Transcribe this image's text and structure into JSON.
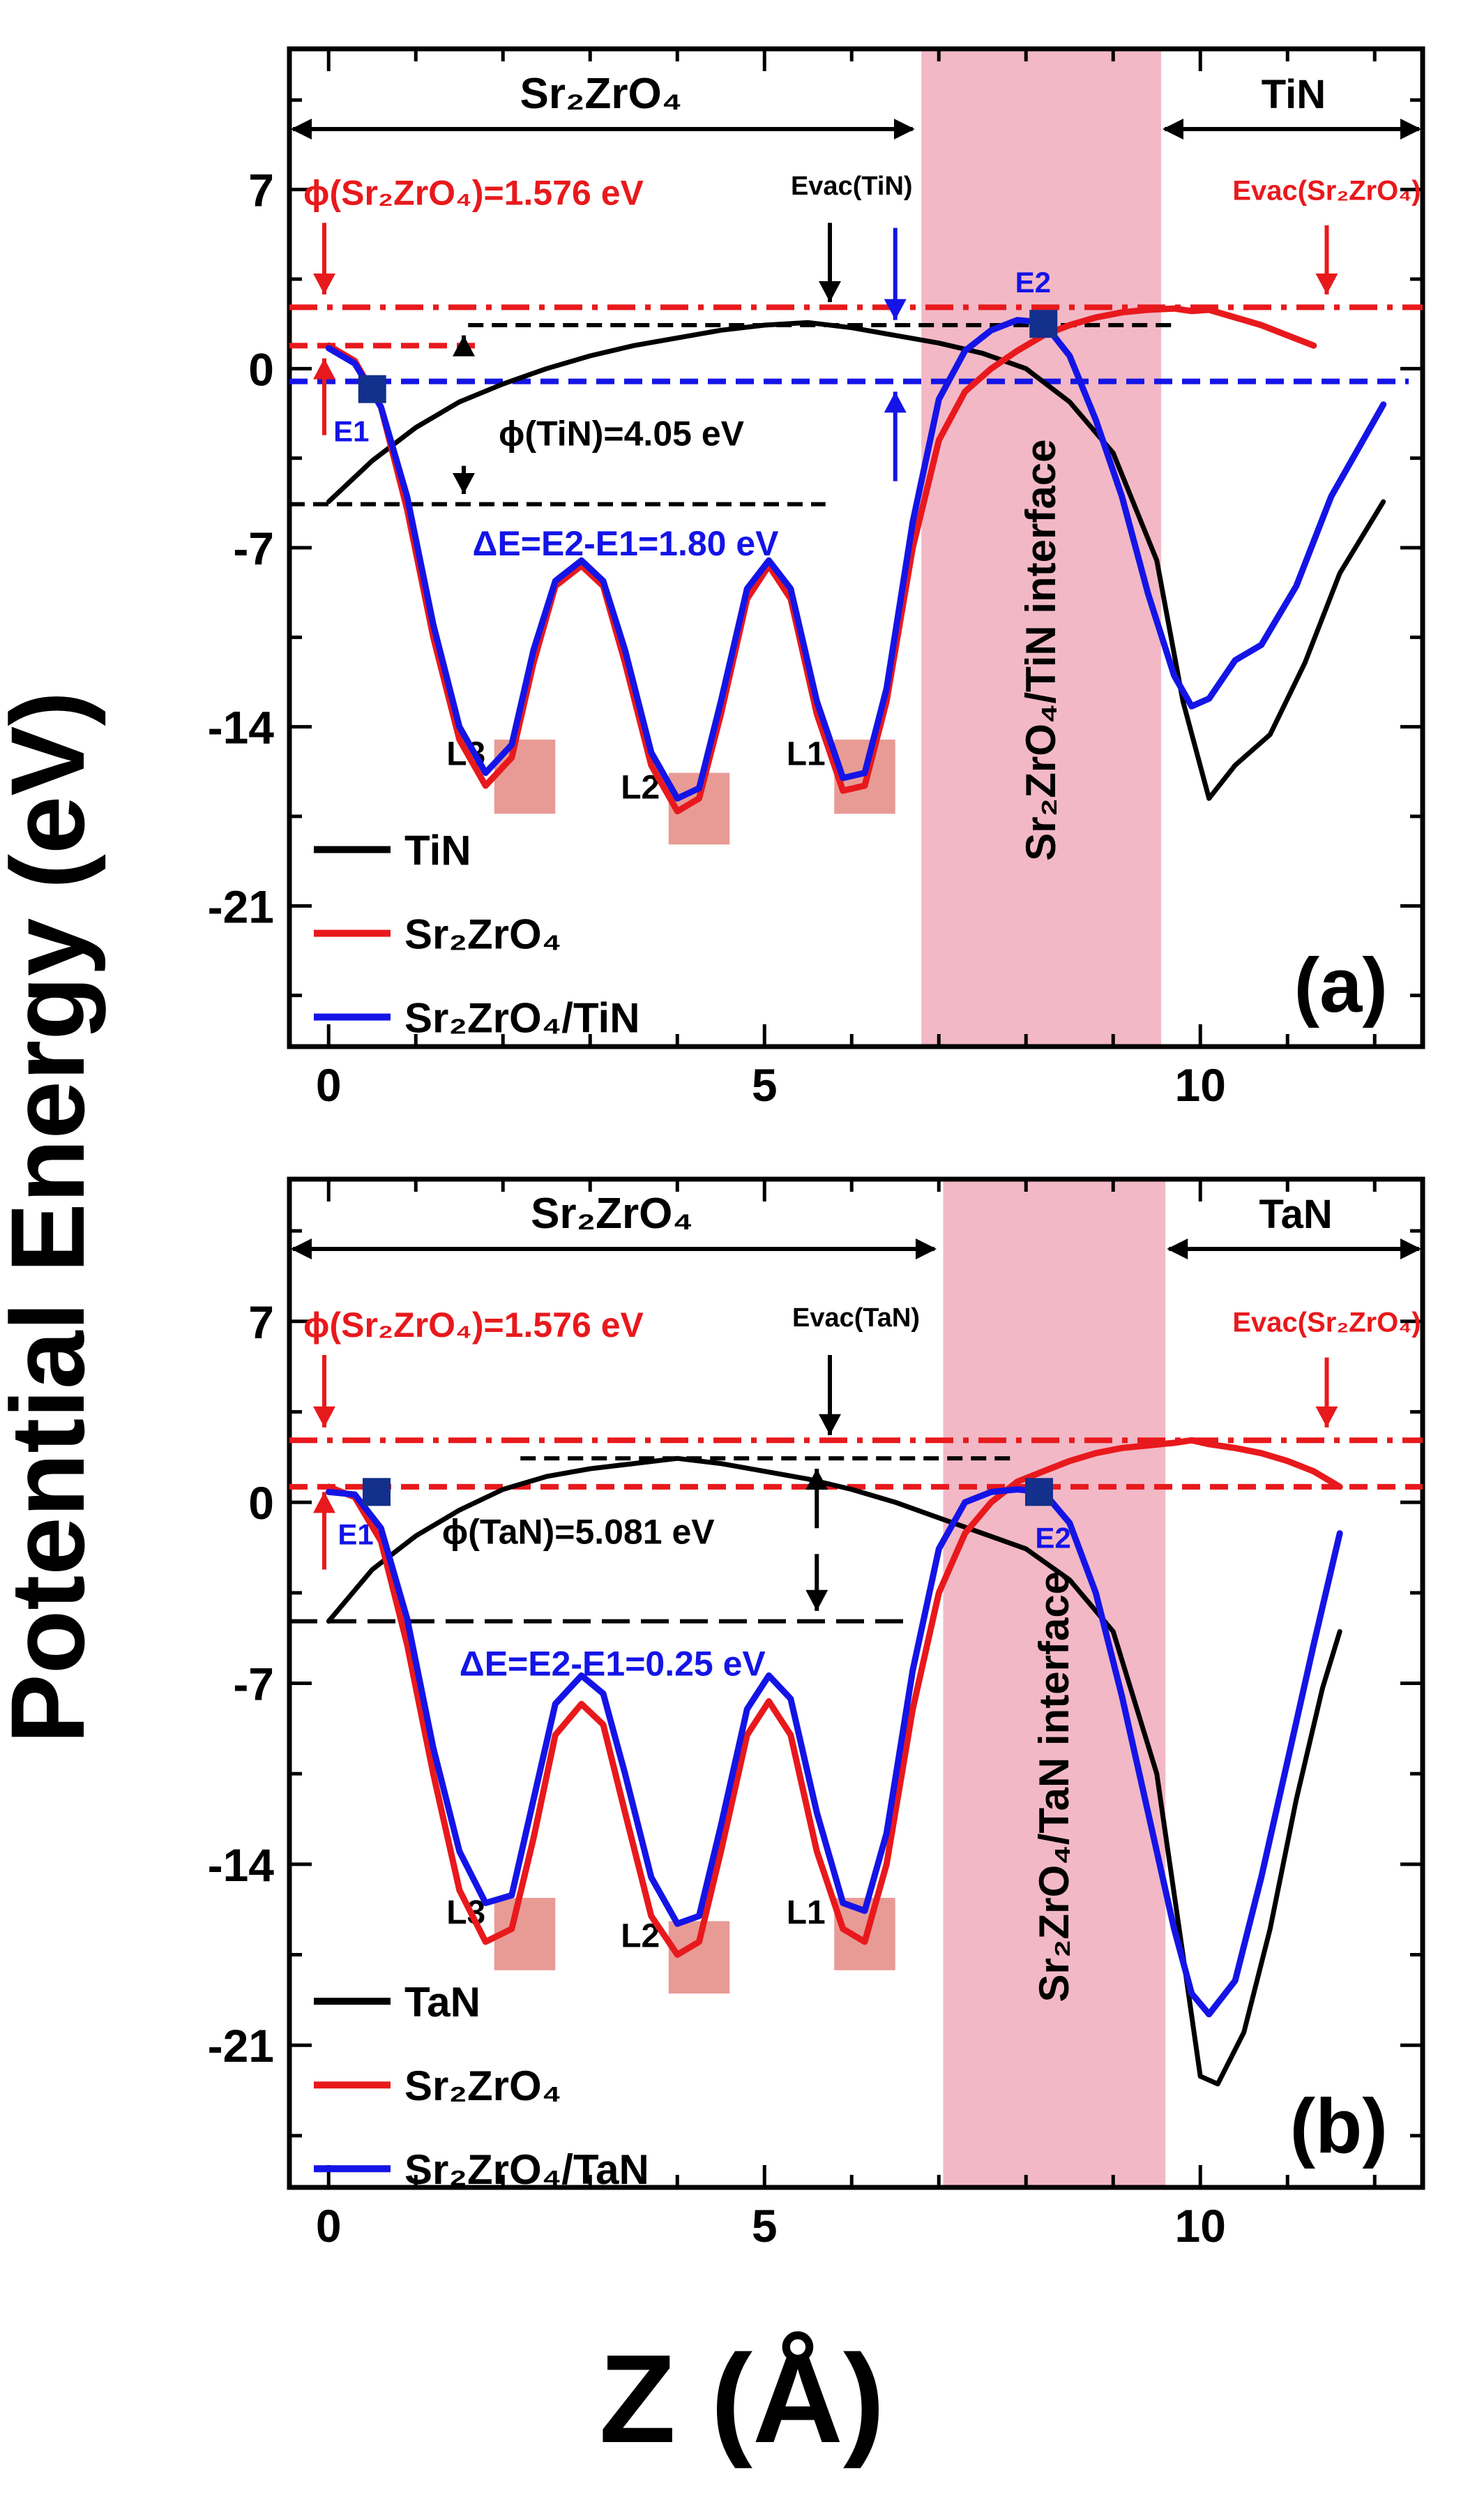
{
  "figure": {
    "ylabel": "Potential Energy (eV)",
    "xlabel": "Z (Å)"
  },
  "chart_data": [
    {
      "type": "line",
      "panel_label": "(a)",
      "title": "",
      "xlabel": "Z (Å)",
      "ylabel": "Potential Energy (eV)",
      "xlim": [
        -0.45,
        12.55
      ],
      "ylim": [
        -26.5,
        12.5
      ],
      "xticks": [
        0,
        5,
        10
      ],
      "yticks": [
        7,
        0,
        -7,
        -14,
        -21
      ],
      "interface_band": [
        6.8,
        9.55
      ],
      "interface_label": "Sr₂ZrO₄/TiN interface",
      "region_labels": {
        "left": "Sr₂ZrO₄",
        "right": "TiN"
      },
      "annotations": {
        "phi_substrate": "ϕ(Sr₂ZrO₄)=1.576 eV",
        "evac_metal": "Evac(TiN)",
        "evac_substrate": "Evac(Sr₂ZrO₄)",
        "phi_metal": "ϕ(TiN)=4.05 eV",
        "delta_e": "ΔE=E2-E1=1.80 eV",
        "e1": "E1",
        "e2": "E2",
        "l1": "L1",
        "l2": "L2",
        "l3": "L3"
      },
      "legend": [
        "TiN",
        "Sr₂ZrO₄",
        "Sr₂ZrO₄/TiN"
      ],
      "colors": {
        "TiN": "#000000",
        "Sr2ZrO4": "#e8191c",
        "interface": "#1414e6",
        "band": "#f2b8c6"
      },
      "reference_levels": {
        "red_dashdot": 2.4,
        "red_dash": 0.9,
        "blue_dash": -0.5,
        "black_dash_top": 1.7,
        "black_dash_bottom": -5.3
      },
      "series": [
        {
          "name": "TiN",
          "x": [
            0,
            0.5,
            1,
            1.5,
            2,
            2.5,
            3,
            3.5,
            4,
            4.5,
            5,
            5.5,
            6,
            6.5,
            7,
            7.5,
            8,
            8.5,
            9,
            9.5,
            9.8,
            10.1,
            10.4,
            10.8,
            11.2,
            11.6,
            12.1
          ],
          "y": [
            -5.2,
            -3.6,
            -2.3,
            -1.3,
            -0.6,
            0,
            0.5,
            0.9,
            1.2,
            1.5,
            1.7,
            1.8,
            1.6,
            1.3,
            1.0,
            0.6,
            0,
            -1.3,
            -3.3,
            -7.5,
            -13,
            -16.8,
            -15.5,
            -14.3,
            -11.5,
            -8.0,
            -5.2
          ]
        },
        {
          "name": "Sr2ZrO4",
          "x": [
            0,
            0.3,
            0.6,
            0.9,
            1.2,
            1.5,
            1.8,
            2.1,
            2.35,
            2.6,
            2.9,
            3.15,
            3.4,
            3.7,
            4.0,
            4.25,
            4.5,
            4.8,
            5.05,
            5.3,
            5.6,
            5.9,
            6.15,
            6.4,
            6.7,
            7.0,
            7.3,
            7.6,
            7.9,
            8.2,
            8.5,
            8.8,
            9.1,
            9.4,
            9.7,
            9.9,
            10.1,
            10.4,
            10.7,
            11.0,
            11.3
          ],
          "y": [
            0.9,
            0.3,
            -1.5,
            -5.5,
            -10.5,
            -14.5,
            -16.3,
            -15.2,
            -11.5,
            -8.5,
            -7.7,
            -8.5,
            -11.5,
            -15.5,
            -17.3,
            -16.8,
            -13.5,
            -9.0,
            -7.7,
            -9.0,
            -13.5,
            -16.5,
            -16.3,
            -13.0,
            -7.0,
            -2.8,
            -0.9,
            0.0,
            0.7,
            1.3,
            1.7,
            2.0,
            2.2,
            2.3,
            2.35,
            2.25,
            2.3,
            2.0,
            1.7,
            1.3,
            0.9
          ]
        },
        {
          "name": "Sr2ZrO4/TiN",
          "x": [
            0,
            0.3,
            0.6,
            0.9,
            1.2,
            1.5,
            1.8,
            2.1,
            2.35,
            2.6,
            2.9,
            3.15,
            3.4,
            3.7,
            4.0,
            4.25,
            4.5,
            4.8,
            5.05,
            5.3,
            5.6,
            5.9,
            6.15,
            6.4,
            6.7,
            7.0,
            7.3,
            7.6,
            7.9,
            8.2,
            8.5,
            8.8,
            9.1,
            9.4,
            9.7,
            9.9,
            10.1,
            10.4,
            10.7,
            11.1,
            11.5,
            12.1
          ],
          "y": [
            0.8,
            0.2,
            -1.5,
            -5.0,
            -10.0,
            -14.0,
            -15.8,
            -14.7,
            -11.0,
            -8.3,
            -7.5,
            -8.3,
            -11.0,
            -15.0,
            -16.8,
            -16.4,
            -13.0,
            -8.6,
            -7.5,
            -8.6,
            -13.0,
            -16.0,
            -15.8,
            -12.5,
            -6.0,
            -1.2,
            0.7,
            1.5,
            1.9,
            1.8,
            0.5,
            -2.0,
            -5.0,
            -8.8,
            -12.0,
            -13.2,
            -12.9,
            -11.4,
            -10.8,
            -8.5,
            -5.0,
            -1.4
          ]
        }
      ]
    },
    {
      "type": "line",
      "panel_label": "(b)",
      "title": "",
      "xlabel": "Z (Å)",
      "ylabel": "Potential Energy (eV)",
      "xlim": [
        -0.45,
        12.55
      ],
      "ylim": [
        -26.5,
        12.5
      ],
      "xticks": [
        0,
        5,
        10
      ],
      "yticks": [
        7,
        0,
        -7,
        -14,
        -21
      ],
      "interface_band": [
        7.05,
        9.6
      ],
      "interface_label": "Sr₂ZrO₄/TaN interface",
      "region_labels": {
        "left": "Sr₂ZrO₄",
        "right": "TaN"
      },
      "annotations": {
        "phi_substrate": "ϕ(Sr₂ZrO₄)=1.576 eV",
        "evac_metal": "Evac(TaN)",
        "evac_substrate": "Evac(Sr₂ZrO₄)",
        "phi_metal": "ϕ(TaN)=5.081 eV",
        "delta_e": "ΔE=E2-E1=0.25 eV",
        "e1": "E1",
        "e2": "E2",
        "l1": "L1",
        "l2": "L2",
        "l3": "L3"
      },
      "legend": [
        "TaN",
        "Sr₂ZrO₄",
        "Sr₂ZrO₄/TaN"
      ],
      "colors": {
        "TaN": "#000000",
        "Sr2ZrO4": "#e8191c",
        "interface": "#1414e6",
        "band": "#f2b8c6"
      },
      "reference_levels": {
        "red_dashdot": 2.4,
        "red_dash": 0.6,
        "black_dash_top": 1.7,
        "black_dash_bottom": -4.6
      },
      "series": [
        {
          "name": "TaN",
          "x": [
            0,
            0.5,
            1,
            1.5,
            2,
            2.5,
            3,
            3.5,
            4,
            4.5,
            5,
            5.5,
            6,
            6.5,
            7,
            7.5,
            8,
            8.5,
            9,
            9.5,
            9.8,
            10.0,
            10.2,
            10.5,
            10.8,
            11.1,
            11.4,
            11.6
          ],
          "y": [
            -4.6,
            -2.6,
            -1.3,
            -0.3,
            0.5,
            1.0,
            1.3,
            1.5,
            1.7,
            1.5,
            1.2,
            0.9,
            0.5,
            0,
            -0.6,
            -1.2,
            -1.8,
            -3.0,
            -5.0,
            -10.5,
            -17.5,
            -22.2,
            -22.5,
            -20.5,
            -16.5,
            -11.5,
            -7.2,
            -5.0
          ]
        },
        {
          "name": "Sr2ZrO4",
          "x": [
            0,
            0.3,
            0.6,
            0.9,
            1.2,
            1.5,
            1.8,
            2.1,
            2.35,
            2.6,
            2.9,
            3.15,
            3.4,
            3.7,
            4.0,
            4.25,
            4.5,
            4.8,
            5.05,
            5.3,
            5.6,
            5.9,
            6.15,
            6.4,
            6.7,
            7.0,
            7.3,
            7.6,
            7.9,
            8.2,
            8.5,
            8.8,
            9.1,
            9.4,
            9.7,
            9.9,
            10.1,
            10.4,
            10.7,
            11.0,
            11.3,
            11.6
          ],
          "y": [
            0.6,
            0.2,
            -1.5,
            -5.5,
            -10.5,
            -15.0,
            -17.0,
            -16.5,
            -13.0,
            -9.0,
            -7.8,
            -8.6,
            -12.0,
            -16.0,
            -17.5,
            -17.0,
            -13.5,
            -9.0,
            -7.7,
            -9.0,
            -13.5,
            -16.5,
            -17.0,
            -14.0,
            -8.0,
            -3.5,
            -1.2,
            0.0,
            0.8,
            1.2,
            1.6,
            1.9,
            2.1,
            2.2,
            2.3,
            2.4,
            2.25,
            2.1,
            1.9,
            1.6,
            1.2,
            0.6
          ]
        },
        {
          "name": "Sr2ZrO4/TaN",
          "x": [
            0,
            0.3,
            0.6,
            0.9,
            1.2,
            1.5,
            1.8,
            2.1,
            2.35,
            2.6,
            2.9,
            3.15,
            3.4,
            3.7,
            4.0,
            4.25,
            4.5,
            4.8,
            5.05,
            5.3,
            5.6,
            5.9,
            6.15,
            6.4,
            6.7,
            7.0,
            7.3,
            7.6,
            7.9,
            8.2,
            8.5,
            8.8,
            9.1,
            9.4,
            9.7,
            9.9,
            10.1,
            10.4,
            10.7,
            11.0,
            11.3,
            11.6
          ],
          "y": [
            0.4,
            0.3,
            -1.0,
            -4.5,
            -9.5,
            -13.5,
            -15.5,
            -15.2,
            -11.5,
            -7.8,
            -6.7,
            -7.4,
            -10.5,
            -14.5,
            -16.3,
            -16.0,
            -12.5,
            -8.0,
            -6.7,
            -7.6,
            -12.0,
            -15.5,
            -15.8,
            -12.8,
            -6.5,
            -1.8,
            0.0,
            0.4,
            0.5,
            0.4,
            -0.8,
            -3.5,
            -7.5,
            -12.0,
            -16.5,
            -19.0,
            -19.8,
            -18.5,
            -14.5,
            -10.0,
            -5.5,
            -1.2
          ]
        }
      ]
    }
  ]
}
